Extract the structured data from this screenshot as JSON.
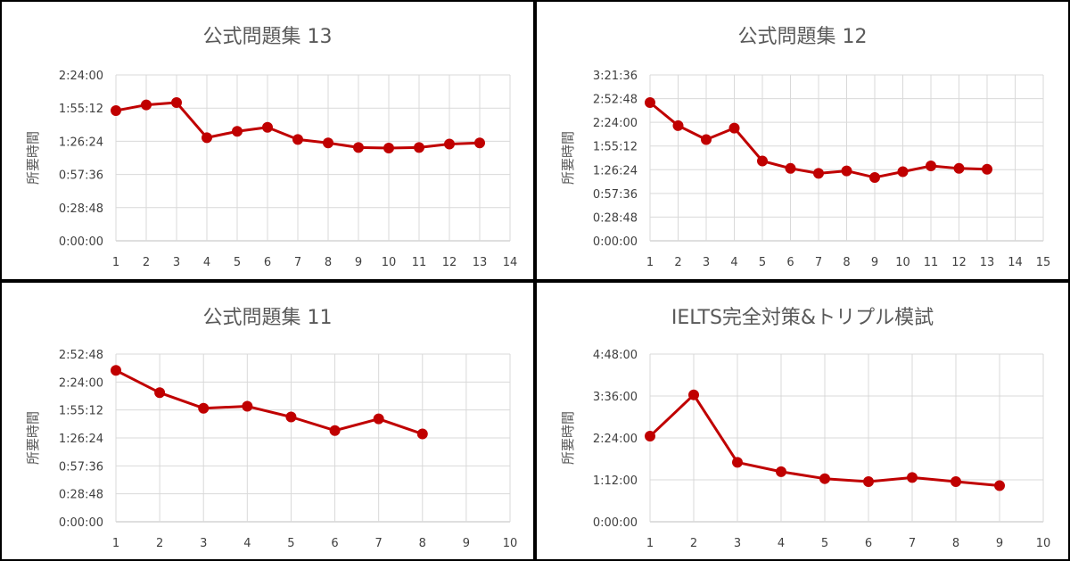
{
  "chart_data": [
    {
      "type": "line",
      "title": "公式問題集 13",
      "ylabel": "所要時間",
      "xlabel": "",
      "x": [
        1,
        2,
        3,
        4,
        5,
        6,
        7,
        8,
        9,
        10,
        11,
        12,
        13
      ],
      "values": [
        "1:53:00",
        "1:58:00",
        "2:00:00",
        "1:29:30",
        "1:35:00",
        "1:38:30",
        "1:28:00",
        "1:25:00",
        "1:21:00",
        "1:20:30",
        "1:21:00",
        "1:24:00",
        "1:25:00"
      ],
      "xlim": [
        1,
        14
      ],
      "xticks": [
        "1",
        "2",
        "3",
        "4",
        "5",
        "6",
        "7",
        "8",
        "9",
        "10",
        "11",
        "12",
        "13",
        "14"
      ],
      "yticks": [
        "0:00:00",
        "0:28:48",
        "0:57:36",
        "1:26:24",
        "1:55:12",
        "2:24:00"
      ],
      "ylim": [
        "0:00:00",
        "2:24:00"
      ],
      "grid": true,
      "color": "#c00000"
    },
    {
      "type": "line",
      "title": "公式問題集 12",
      "ylabel": "所要時間",
      "xlabel": "",
      "x": [
        1,
        2,
        3,
        4,
        5,
        6,
        7,
        8,
        9,
        10,
        11,
        12,
        13
      ],
      "values": [
        "2:48:00",
        "2:20:00",
        "2:03:00",
        "2:17:00",
        "1:37:00",
        "1:28:00",
        "1:22:00",
        "1:25:00",
        "1:17:00",
        "1:24:00",
        "1:31:00",
        "1:28:00",
        "1:27:00"
      ],
      "xlim": [
        1,
        15
      ],
      "xticks": [
        "1",
        "2",
        "3",
        "4",
        "5",
        "6",
        "7",
        "8",
        "9",
        "10",
        "11",
        "12",
        "13",
        "14",
        "15"
      ],
      "yticks": [
        "0:00:00",
        "0:28:48",
        "0:57:36",
        "1:26:24",
        "1:55:12",
        "2:24:00",
        "2:52:48",
        "3:21:36"
      ],
      "ylim": [
        "0:00:00",
        "3:21:36"
      ],
      "grid": true,
      "color": "#c00000"
    },
    {
      "type": "line",
      "title": "公式問題集 11",
      "ylabel": "所要時間",
      "xlabel": "",
      "x": [
        1,
        2,
        3,
        4,
        5,
        6,
        7,
        8
      ],
      "values": [
        "2:36:00",
        "2:13:00",
        "1:57:00",
        "1:59:00",
        "1:48:00",
        "1:34:00",
        "1:46:00",
        "1:30:30"
      ],
      "xlim": [
        1,
        10
      ],
      "xticks": [
        "1",
        "2",
        "3",
        "4",
        "5",
        "6",
        "7",
        "8",
        "9",
        "10"
      ],
      "yticks": [
        "0:00:00",
        "0:28:48",
        "0:57:36",
        "1:26:24",
        "1:55:12",
        "2:24:00",
        "2:52:48"
      ],
      "ylim": [
        "0:00:00",
        "2:52:48"
      ],
      "grid": true,
      "color": "#c00000"
    },
    {
      "type": "line",
      "title": "IELTS完全対策&トリプル模試",
      "ylabel": "所要時間",
      "xlabel": "",
      "x": [
        1,
        2,
        3,
        4,
        5,
        6,
        7,
        8,
        9
      ],
      "values": [
        "2:27:00",
        "3:38:00",
        "1:42:00",
        "1:26:00",
        "1:14:00",
        "1:09:00",
        "1:16:00",
        "1:09:00",
        "1:02:00"
      ],
      "xlim": [
        1,
        10
      ],
      "xticks": [
        "1",
        "2",
        "3",
        "4",
        "5",
        "6",
        "7",
        "8",
        "9",
        "10"
      ],
      "yticks": [
        "0:00:00",
        "1:12:00",
        "2:24:00",
        "3:36:00",
        "4:48:00"
      ],
      "ylim": [
        "0:00:00",
        "4:48:00"
      ],
      "grid": true,
      "color": "#c00000"
    }
  ]
}
